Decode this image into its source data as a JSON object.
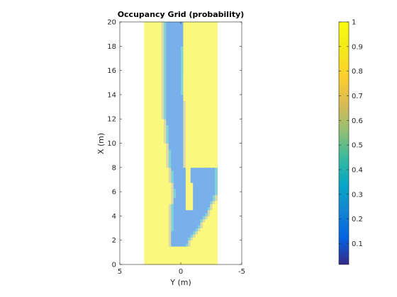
{
  "chart_data": {
    "type": "heatmap",
    "title": "Occupancy Grid (probability)",
    "xlabel": "Y (m)",
    "ylabel": "X (m)",
    "xlim": [
      5,
      -5
    ],
    "ylim": [
      0,
      20
    ],
    "x_ticks": [
      5,
      0,
      -5
    ],
    "x_tick_labels": [
      "5",
      "0",
      "-5"
    ],
    "y_ticks": [
      0,
      2,
      4,
      6,
      8,
      10,
      12,
      14,
      16,
      18,
      20
    ],
    "y_tick_labels": [
      "0",
      "2",
      "4",
      "6",
      "8",
      "10",
      "12",
      "14",
      "16",
      "18",
      "20"
    ],
    "grid": false,
    "grid_extent": {
      "y_range": [
        3,
        -3
      ],
      "x_range": [
        0,
        20
      ]
    },
    "colormap": "parula",
    "colorbar": {
      "placement": "right",
      "limits": [
        0.015,
        1
      ],
      "ticks": [
        0.1,
        0.2,
        0.3,
        0.4,
        0.5,
        0.6,
        0.7,
        0.8,
        0.9,
        1
      ],
      "tick_labels": [
        "0.1",
        "0.2",
        "0.3",
        "0.4",
        "0.5",
        "0.6",
        "0.7",
        "0.8",
        "0.9",
        "1"
      ]
    },
    "regions": {
      "background_value": 0.96,
      "free_space_value": 0.15,
      "free_corridor": [
        {
          "x": 1.6,
          "y_left": 0.9,
          "y_right": -0.5
        },
        {
          "x": 4.0,
          "y_left": 0.8,
          "y_right": -2.1
        },
        {
          "x": 6.0,
          "y_left": 0.6,
          "y_right": -3.0
        },
        {
          "x": 8.0,
          "y_left": 0.9,
          "y_right": -3.0
        },
        {
          "x": 8.01,
          "y_left": 0.9,
          "y_right": -0.3
        },
        {
          "x": 12.0,
          "y_left": 1.3,
          "y_right": -0.3
        },
        {
          "x": 16.0,
          "y_left": 1.4,
          "y_right": -0.2
        },
        {
          "x": 20.0,
          "y_left": 1.4,
          "y_right": -0.3
        }
      ],
      "occupied_wedge": {
        "x_start": 4.6,
        "y_left_start": -0.5,
        "y_right_start": -1.0,
        "x_end": 20.0,
        "y_left_end": -0.15,
        "y_right_end": -0.3,
        "value": 0.93
      }
    }
  }
}
